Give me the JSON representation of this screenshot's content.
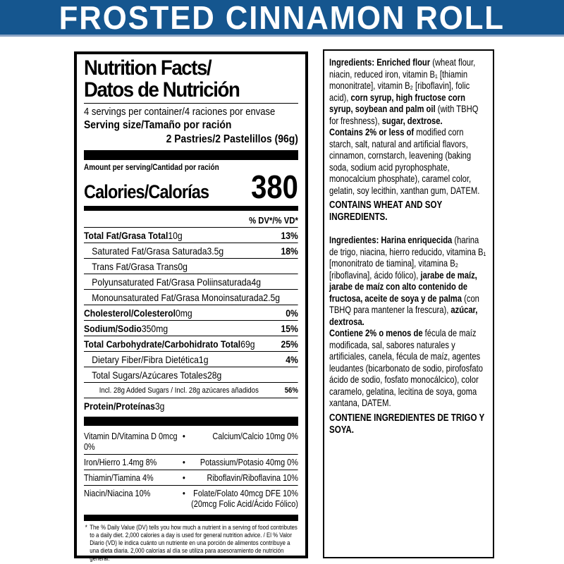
{
  "banner": {
    "title": "FROSTED CINNAMON ROLL"
  },
  "colors": {
    "banner_blue": "#15568f",
    "banner_edge": "#8aa3c4",
    "text": "#000000"
  },
  "nutrition": {
    "title_line1": "Nutrition Facts/",
    "title_line2": "Datos de Nutrición",
    "servings_per_container": "4 servings per container/4 raciones por envase",
    "serving_size_label": "Serving size/Tamaño por ración",
    "serving_size_value": "2 Pastries/2 Pastelillos (96g)",
    "amount_per_serving": "Amount per serving/Cantidad por ración",
    "calories_label": "Calories/Calorías",
    "calories_value": "380",
    "dv_header": "% DV*/% VD*",
    "rows": [
      {
        "name": "Total Fat/Grasa Total",
        "amount": " 10g",
        "dv": "13%"
      },
      {
        "name": "Saturated Fat/Grasa Saturada",
        "amount": " 3.5g",
        "dv": "18%"
      },
      {
        "name": "Trans Fat/Grasa Trans",
        "amount": " 0g",
        "dv": ""
      },
      {
        "name": "Polyunsaturated Fat/Grasa Poliinsaturada",
        "amount": " 4g",
        "dv": ""
      },
      {
        "name": "Monounsaturated Fat/Grasa Monoinsaturada",
        "amount": " 2.5g",
        "dv": ""
      },
      {
        "name": "Cholesterol/Colesterol",
        "amount": " 0mg",
        "dv": "0%"
      },
      {
        "name": "Sodium/Sodio",
        "amount": " 350mg",
        "dv": "15%"
      },
      {
        "name": "Total Carbohydrate/Carbohidrato Total",
        "amount": " 69g",
        "dv": "25%"
      },
      {
        "name": "Dietary Fiber/Fibra Dietética",
        "amount": " 1g",
        "dv": "4%"
      },
      {
        "name": "Total Sugars/Azúcares Totales",
        "amount": " 28g",
        "dv": ""
      },
      {
        "name": "Incl. 28g Added Sugars / Incl. 28g azúcares añadidos",
        "amount": "",
        "dv": "56%"
      },
      {
        "name": "Protein/Proteínas",
        "amount": " 3g",
        "dv": ""
      }
    ],
    "vitamins": [
      {
        "left": "Vitamin D/Vitamina D 0mcg 0%",
        "bullet": "•",
        "right": "Calcium/Calcio 10mg 0%"
      },
      {
        "left": "Iron/Hierro 1.4mg 8%",
        "bullet": "•",
        "right": "Potassium/Potasio 40mg 0%"
      },
      {
        "left": "Thiamin/Tiamina 4%",
        "bullet": "•",
        "right": "Riboflavin/Riboflavina 10%"
      },
      {
        "left": "Niacin/Niacina 10%",
        "bullet": "•",
        "right": "Folate/Folato 40mcg DFE 10% (20mcg Folic Acid/Ácido Fólico)"
      }
    ],
    "footnote_marker": "*",
    "footnote": "The % Daily Value (DV) tells you how much a nutrient in a serving of food contributes to a daily diet. 2,000 calories a day is used for general nutrition advice. / El % Valor Diario (VD) le indica cuánto un nutriente en una porción de alimentos contribuye a una dieta diaria. 2,000 calorías al día se utiliza para asesoramiento de nutrición general."
  },
  "ingredients": {
    "en_segments": [
      {
        "text": "Ingredients: Enriched flour ",
        "bold": true
      },
      {
        "text": "(wheat flour, niacin, reduced iron, vitamin B₁ [thiamin mononitrate], vitamin B₂ [riboflavin], folic acid), ",
        "bold": false
      },
      {
        "text": "corn syrup, high fructose corn syrup, soybean and palm oil ",
        "bold": true
      },
      {
        "text": "(with TBHQ for freshness), ",
        "bold": false
      },
      {
        "text": "sugar, dextrose.",
        "bold": true
      }
    ],
    "en_contains": [
      {
        "text": "Contains 2% or less of ",
        "bold": true
      },
      {
        "text": "modified corn starch, salt, natural and artificial flavors, cinnamon, cornstarch, leavening (baking soda, sodium acid pyrophosphate, monocalcium phosphate), caramel color, gelatin, soy lecithin, xanthan gum, DATEM.",
        "bold": false
      }
    ],
    "en_allergen": "CONTAINS WHEAT AND SOY INGREDIENTS.",
    "es_segments": [
      {
        "text": "Ingredientes: Harina enriquecida ",
        "bold": true
      },
      {
        "text": "(harina de trigo, niacina, hierro reducido, vitamina B₁ [mononitrato de tiamina], vitamina B₂ [riboflavina], ácido fólico), ",
        "bold": false
      },
      {
        "text": "jarabe de maíz, jarabe de maíz con alto contenido de fructosa, aceite de soya y de palma ",
        "bold": true
      },
      {
        "text": "(con TBHQ para mantener la frescura), ",
        "bold": false
      },
      {
        "text": "azúcar, dextrosa.",
        "bold": true
      }
    ],
    "es_contains": [
      {
        "text": "Contiene 2% o menos de ",
        "bold": true
      },
      {
        "text": "fécula de maíz modificada, sal, sabores naturales y artificiales, canela, fécula de maíz, agentes leudantes (bicarbonato de sodio, pirofosfato ácido de sodio, fosfato monocálcico), color caramelo, gelatina, lecitina de soya, goma xantana, DATEM.",
        "bold": false
      }
    ],
    "es_allergen": "CONTIENE INGREDIENTES DE TRIGO Y SOYA."
  }
}
